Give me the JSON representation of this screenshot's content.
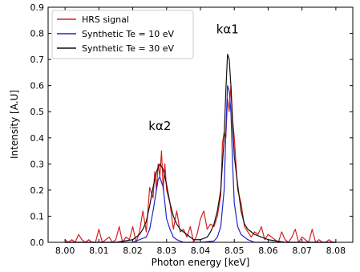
{
  "chart_data": {
    "type": "line",
    "xlabel": "Photon energy [keV]",
    "ylabel": "Intensity [A.U]",
    "xlim": [
      7.995,
      8.085
    ],
    "ylim": [
      0,
      0.9
    ],
    "xticks": [
      "8.00",
      "8.01",
      "8.02",
      "8.03",
      "8.04",
      "8.05",
      "8.06",
      "8.07",
      "8.08"
    ],
    "yticks": [
      "0.0",
      "0.1",
      "0.2",
      "0.3",
      "0.4",
      "0.5",
      "0.6",
      "0.7",
      "0.8",
      "0.9"
    ],
    "grid": false,
    "legend_position": "top-left",
    "annotations": [
      {
        "text": "kα2",
        "x": 8.028,
        "y": 0.43
      },
      {
        "text": "kα1",
        "x": 8.048,
        "y": 0.8
      }
    ],
    "series": [
      {
        "name": "HRS signal",
        "color": "#d62020",
        "x": [
          8.0,
          8.001,
          8.002,
          8.003,
          8.004,
          8.005,
          8.006,
          8.007,
          8.008,
          8.009,
          8.01,
          8.011,
          8.012,
          8.013,
          8.014,
          8.015,
          8.016,
          8.017,
          8.018,
          8.019,
          8.02,
          8.021,
          8.022,
          8.023,
          8.024,
          8.025,
          8.026,
          8.0265,
          8.027,
          8.0275,
          8.028,
          8.0285,
          8.029,
          8.0295,
          8.03,
          8.031,
          8.032,
          8.033,
          8.034,
          8.035,
          8.036,
          8.037,
          8.038,
          8.039,
          8.04,
          8.041,
          8.042,
          8.043,
          8.044,
          8.045,
          8.046,
          8.0465,
          8.047,
          8.0475,
          8.048,
          8.0485,
          8.049,
          8.0495,
          8.05,
          8.0505,
          8.051,
          8.052,
          8.053,
          8.054,
          8.055,
          8.056,
          8.057,
          8.058,
          8.059,
          8.06,
          8.061,
          8.062,
          8.063,
          8.064,
          8.065,
          8.066,
          8.067,
          8.068,
          8.069,
          8.07,
          8.071,
          8.072,
          8.073,
          8.074,
          8.075,
          8.076,
          8.077,
          8.078,
          8.079,
          8.08
        ],
        "y": [
          0.01,
          0.0,
          0.01,
          0.0,
          0.03,
          0.01,
          0.0,
          0.01,
          0.0,
          0.0,
          0.05,
          0.0,
          0.01,
          0.02,
          0.0,
          0.01,
          0.06,
          0.0,
          0.02,
          0.01,
          0.06,
          0.0,
          0.04,
          0.12,
          0.04,
          0.21,
          0.17,
          0.27,
          0.2,
          0.3,
          0.25,
          0.35,
          0.2,
          0.3,
          0.2,
          0.15,
          0.05,
          0.12,
          0.04,
          0.05,
          0.02,
          0.06,
          0.0,
          0.03,
          0.09,
          0.12,
          0.05,
          0.07,
          0.06,
          0.1,
          0.18,
          0.38,
          0.42,
          0.4,
          0.55,
          0.5,
          0.6,
          0.47,
          0.4,
          0.3,
          0.2,
          0.15,
          0.06,
          0.04,
          0.02,
          0.04,
          0.03,
          0.06,
          0.01,
          0.03,
          0.02,
          0.01,
          0.0,
          0.04,
          0.01,
          0.0,
          0.02,
          0.05,
          0.0,
          0.02,
          0.01,
          0.0,
          0.05,
          0.0,
          0.01,
          0.0,
          0.0,
          0.01,
          0.0,
          0.0
        ]
      },
      {
        "name": "Synthetic Te = 10 eV",
        "color": "#2222cc",
        "x": [
          8.0,
          8.02,
          8.024,
          8.025,
          8.026,
          8.027,
          8.0275,
          8.028,
          8.0285,
          8.029,
          8.0295,
          8.03,
          8.031,
          8.032,
          8.033,
          8.035,
          8.04,
          8.044,
          8.045,
          8.046,
          8.047,
          8.0475,
          8.048,
          8.0485,
          8.049,
          8.0495,
          8.05,
          8.051,
          8.052,
          8.054,
          8.056,
          8.06,
          8.08
        ],
        "y": [
          0.0,
          0.0,
          0.02,
          0.05,
          0.12,
          0.2,
          0.24,
          0.25,
          0.23,
          0.21,
          0.15,
          0.09,
          0.05,
          0.02,
          0.01,
          0.0,
          0.0,
          0.005,
          0.02,
          0.06,
          0.2,
          0.42,
          0.6,
          0.58,
          0.5,
          0.3,
          0.15,
          0.06,
          0.03,
          0.01,
          0.0,
          0.0,
          0.0
        ]
      },
      {
        "name": "Synthetic Te = 30 eV",
        "color": "#111111",
        "x": [
          8.0,
          8.015,
          8.02,
          8.022,
          8.023,
          8.024,
          8.025,
          8.026,
          8.027,
          8.028,
          8.029,
          8.03,
          8.031,
          8.032,
          8.033,
          8.034,
          8.035,
          8.036,
          8.037,
          8.038,
          8.04,
          8.042,
          8.043,
          8.044,
          8.045,
          8.046,
          8.047,
          8.0475,
          8.048,
          8.0485,
          8.049,
          8.0495,
          8.05,
          8.051,
          8.052,
          8.053,
          8.054,
          8.055,
          8.056,
          8.058,
          8.06,
          8.065,
          8.07,
          8.08
        ],
        "y": [
          0.0,
          0.0,
          0.01,
          0.03,
          0.05,
          0.08,
          0.14,
          0.21,
          0.27,
          0.3,
          0.28,
          0.22,
          0.15,
          0.1,
          0.07,
          0.05,
          0.04,
          0.03,
          0.02,
          0.01,
          0.01,
          0.02,
          0.04,
          0.07,
          0.12,
          0.2,
          0.4,
          0.58,
          0.72,
          0.7,
          0.6,
          0.45,
          0.33,
          0.22,
          0.12,
          0.07,
          0.05,
          0.04,
          0.03,
          0.02,
          0.01,
          0.0,
          0.0,
          0.0
        ]
      }
    ]
  }
}
